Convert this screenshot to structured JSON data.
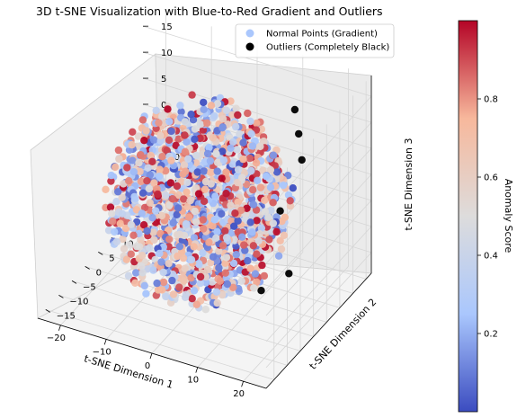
{
  "chart_data": {
    "type": "scatter",
    "projection": "3d",
    "title": "3D t-SNE Visualization with Blue-to-Red Gradient and Outliers",
    "axes": {
      "x": {
        "label": "t-SNE Dimension 1",
        "ticks": [
          -20,
          -10,
          0,
          10,
          20
        ],
        "range": [
          -25,
          25
        ]
      },
      "y": {
        "label": "t-SNE Dimension 2",
        "ticks": [
          -15,
          -10,
          -5,
          0,
          5,
          10,
          15,
          20
        ],
        "range": [
          -18,
          22
        ]
      },
      "z": {
        "label": "t-SNE Dimension 3",
        "ticks": [
          -15,
          -10,
          -5,
          0,
          5,
          10,
          15
        ],
        "range": [
          -19,
          19
        ]
      }
    },
    "grid": true,
    "colorbar": {
      "label": "Anomaly Score",
      "ticks": [
        0.2,
        0.4,
        0.6,
        0.8
      ],
      "range": [
        0.0,
        1.0
      ],
      "colormap": "coolwarm",
      "colors": [
        "#3b4cc0",
        "#aac7fd",
        "#dddcdc",
        "#f7b89c",
        "#b40426"
      ]
    },
    "legend": {
      "position": "top-right",
      "entries": [
        {
          "label": "Normal Points (Gradient)",
          "color": "#aac7fd"
        },
        {
          "label": "Outliers (Completely Black)",
          "color": "#000000"
        }
      ]
    },
    "series": [
      {
        "name": "Normal Points (Gradient)",
        "distribution": "ball",
        "count": 1500,
        "center": [
          0,
          0,
          0
        ],
        "radius": 18,
        "color_value_range": [
          0.0,
          1.0
        ]
      },
      {
        "name": "Outliers (Completely Black)",
        "color": "#000000",
        "points": [
          {
            "x": 16,
            "y": 10,
            "z": 12
          },
          {
            "x": 19,
            "y": 6,
            "z": 10
          },
          {
            "x": 14,
            "y": 12,
            "z": 15
          },
          {
            "x": 17,
            "y": -6,
            "z": -9
          },
          {
            "x": 20,
            "y": -4,
            "z": 6
          },
          {
            "x": 15,
            "y": 8,
            "z": -14
          }
        ]
      }
    ]
  }
}
